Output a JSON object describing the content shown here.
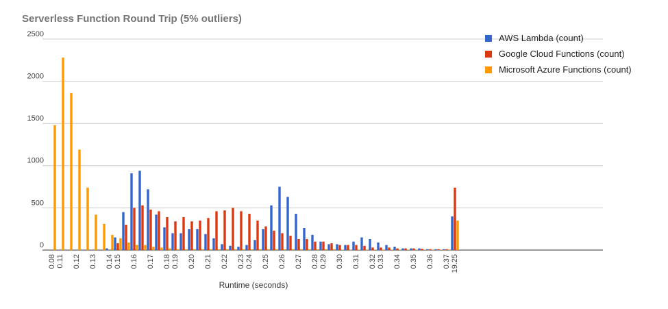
{
  "chart_data": {
    "type": "bar",
    "title": "Serverless Function Round Trip (5% outliers)",
    "x_label": "Runtime (seconds)",
    "categories": [
      "0.08",
      "0.11",
      null,
      "0.12",
      null,
      "0.13",
      null,
      "0.14",
      "0.15",
      null,
      "0.16",
      null,
      "0.17",
      null,
      "0.18",
      "0.19",
      null,
      "0.20",
      null,
      "0.21",
      null,
      "0.22",
      null,
      "0.23",
      "0.24",
      null,
      "0.25",
      null,
      "0.26",
      null,
      "0.27",
      null,
      "0.28",
      "0.29",
      null,
      "0.30",
      null,
      "0.31",
      null,
      "0.32",
      "0.33",
      null,
      "0.34",
      null,
      "0.35",
      null,
      "0.36",
      null,
      "0.37",
      "19.25"
    ],
    "series": [
      {
        "name": "AWS Lambda (count)",
        "color": "#3366cc",
        "values": [
          0,
          0,
          0,
          0,
          0,
          0,
          0,
          20,
          150,
          450,
          910,
          940,
          720,
          420,
          270,
          200,
          200,
          250,
          250,
          190,
          140,
          70,
          50,
          40,
          60,
          120,
          250,
          530,
          750,
          630,
          430,
          260,
          180,
          100,
          70,
          70,
          60,
          100,
          150,
          130,
          90,
          60,
          40,
          20,
          20,
          20,
          10,
          10,
          10,
          400
        ]
      },
      {
        "name": "Google Cloud Functions (count)",
        "color": "#dc3912",
        "values": [
          0,
          0,
          0,
          0,
          0,
          0,
          0,
          0,
          80,
          300,
          500,
          530,
          480,
          460,
          390,
          340,
          390,
          340,
          350,
          380,
          460,
          470,
          500,
          460,
          430,
          350,
          280,
          230,
          200,
          170,
          130,
          130,
          100,
          100,
          80,
          60,
          60,
          60,
          50,
          30,
          30,
          30,
          20,
          20,
          20,
          15,
          10,
          10,
          10,
          740
        ]
      },
      {
        "name": "Microsoft Azure Functions (count)",
        "color": "#ff9900",
        "values": [
          1480,
          2280,
          1860,
          1190,
          740,
          420,
          310,
          180,
          140,
          90,
          60,
          60,
          40,
          30,
          20,
          10,
          10,
          10,
          10,
          10,
          10,
          10,
          10,
          10,
          10,
          10,
          10,
          10,
          10,
          10,
          10,
          10,
          10,
          10,
          10,
          5,
          5,
          5,
          5,
          5,
          5,
          5,
          5,
          5,
          5,
          5,
          5,
          5,
          5,
          350
        ]
      }
    ],
    "ylim": [
      0,
      2500
    ],
    "yticks": [
      0,
      500,
      1000,
      1500,
      2000,
      2500
    ],
    "grid": true,
    "legend": "right"
  }
}
